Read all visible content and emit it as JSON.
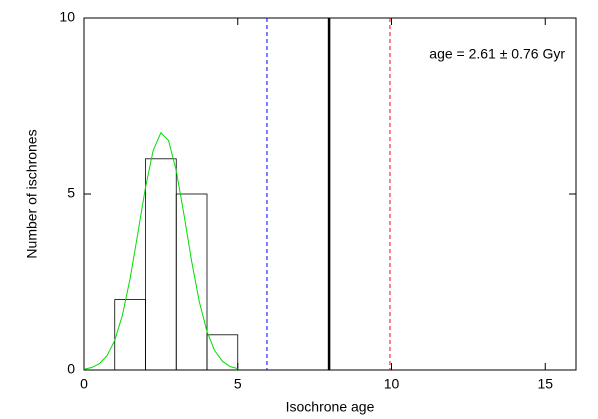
{
  "chart_data": {
    "type": "histogram",
    "xlabel": "Isochrone age",
    "ylabel": "Number of ischrones",
    "annotation": "age = 2.61 ± 0.76 Gyr",
    "bins": [
      1,
      2,
      3,
      4,
      5
    ],
    "values": [
      2,
      6,
      5,
      1
    ],
    "color": "#000000",
    "curve": {
      "color": "#00dd00",
      "x": [
        0,
        0.25,
        0.5,
        0.75,
        1,
        1.25,
        1.5,
        1.75,
        2,
        2.25,
        2.5,
        2.75,
        3,
        3.25,
        3.5,
        3.75,
        4,
        4.25,
        4.5,
        4.75,
        5
      ],
      "values": [
        0.02,
        0.07,
        0.18,
        0.41,
        0.84,
        1.56,
        2.6,
        3.88,
        5.19,
        6.24,
        6.74,
        6.52,
        5.66,
        4.42,
        3.09,
        1.94,
        1.09,
        0.55,
        0.25,
        0.1,
        0.04
      ]
    },
    "vlines": [
      {
        "x": 5.95,
        "color": "#0000ff",
        "dashed": true
      },
      {
        "x": 7.97,
        "color": "#000000",
        "dashed": false
      },
      {
        "x": 9.95,
        "color": "#ff0000",
        "dashed": true
      }
    ],
    "xlim": [
      0,
      16
    ],
    "ylim": [
      0,
      10
    ],
    "xticks": [
      0,
      5,
      10,
      15
    ],
    "yticks": [
      0,
      5,
      10
    ]
  }
}
